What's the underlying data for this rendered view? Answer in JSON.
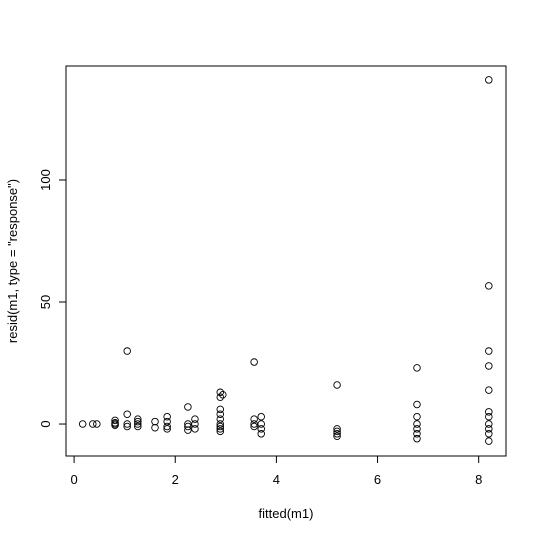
{
  "chart_data": {
    "type": "scatter",
    "xlabel": "fitted(m1)",
    "ylabel": "resid(m1, type = \"response\")",
    "x": [
      0.17,
      0.37,
      0.45,
      0.81,
      0.81,
      0.81,
      0.81,
      1.05,
      1.05,
      1.05,
      1.05,
      1.26,
      1.26,
      1.26,
      1.26,
      1.6,
      1.6,
      1.84,
      1.84,
      1.84,
      1.84,
      2.25,
      2.25,
      2.25,
      2.25,
      2.39,
      2.39,
      2.39,
      2.89,
      2.89,
      2.89,
      2.89,
      2.89,
      2.89,
      2.89,
      2.89,
      2.89,
      2.94,
      3.56,
      3.56,
      3.56,
      3.56,
      3.7,
      3.7,
      3.7,
      3.7,
      5.2,
      5.2,
      5.2,
      5.2,
      5.2,
      6.78,
      6.78,
      6.78,
      6.78,
      6.78,
      6.78,
      6.78,
      8.2,
      8.2,
      8.2,
      8.2,
      8.2,
      8.2,
      8.2,
      8.2,
      8.2,
      8.2,
      8.2
    ],
    "y": [
      0,
      0,
      0,
      1.5,
      0.5,
      0,
      -0.5,
      29.9,
      4,
      0,
      -1,
      2,
      1,
      0,
      -1,
      1,
      -1.5,
      3,
      1,
      -1,
      -2,
      7,
      0,
      -1,
      -2.5,
      2,
      0,
      -2,
      13,
      11,
      6,
      4,
      2,
      0,
      -1,
      -2,
      -3,
      12,
      25.4,
      2,
      0,
      -1,
      3,
      0,
      -2,
      -4,
      16,
      -2,
      -3,
      -4,
      -5,
      23,
      8,
      3,
      0,
      -2,
      -4,
      -6,
      141,
      56.6,
      29.9,
      23.8,
      13.9,
      5,
      3,
      0,
      -2,
      -4,
      -7
    ],
    "color": "#000000",
    "xlim": [
      -0.16,
      8.54
    ],
    "ylim": [
      -13.1,
      146.7
    ],
    "xticks": [
      0,
      2,
      4,
      6,
      8
    ],
    "yticks": [
      0,
      50,
      100
    ]
  }
}
